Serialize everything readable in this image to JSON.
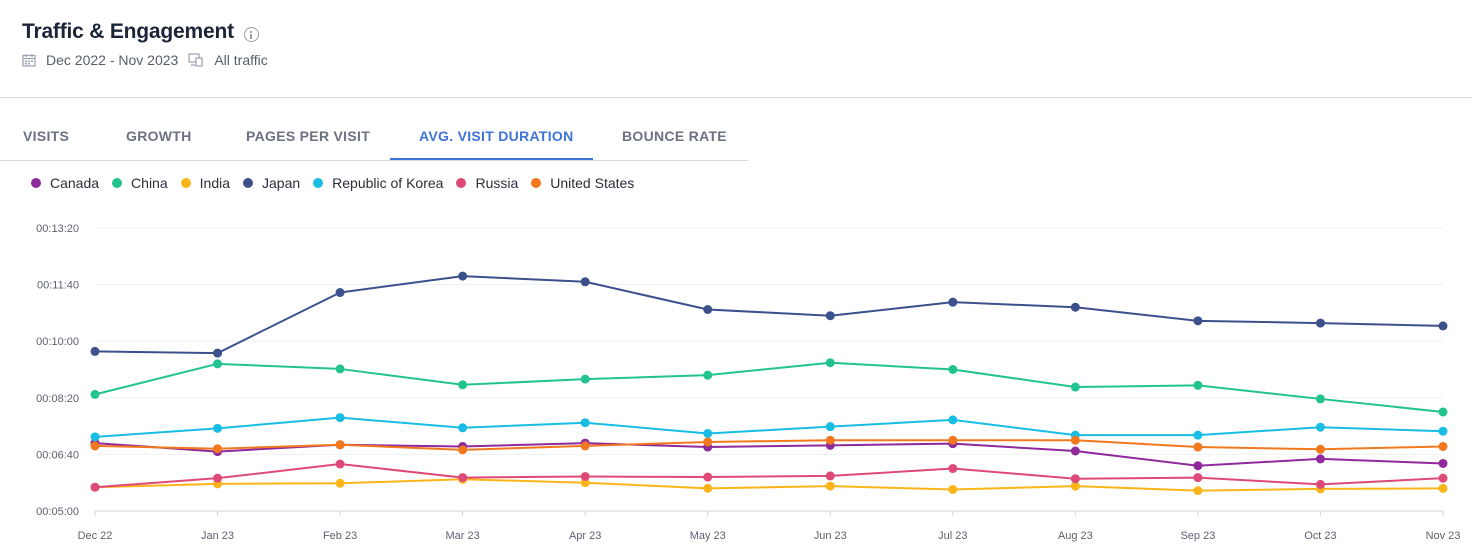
{
  "header": {
    "title": "Traffic & Engagement",
    "date_range": "Dec 2022 - Nov 2023",
    "traffic_type": "All traffic"
  },
  "tabs": [
    {
      "label": "VISITS"
    },
    {
      "label": "GROWTH"
    },
    {
      "label": "PAGES PER VISIT"
    },
    {
      "label": "AVG. VISIT DURATION",
      "active": true
    },
    {
      "label": "BOUNCE RATE"
    }
  ],
  "chart_data": {
    "type": "line",
    "x": [
      "Dec 22",
      "Jan 23",
      "Feb 23",
      "Mar 23",
      "Apr 23",
      "May 23",
      "Jun 23",
      "Jul 23",
      "Aug 23",
      "Sep 23",
      "Oct 23",
      "Nov 23"
    ],
    "y_unit": "seconds",
    "ylim": [
      300,
      800
    ],
    "y_ticks": [
      300,
      400,
      500,
      600,
      700,
      800
    ],
    "y_tick_labels": [
      "00:05:00",
      "00:06:40",
      "00:08:20",
      "00:10:00",
      "00:11:40",
      "00:13:20"
    ],
    "grid": true,
    "legend_position": "top-left",
    "series": [
      {
        "name": "Canada",
        "color": "#8e2a9c",
        "values": [
          420,
          405,
          417,
          414,
          420,
          413,
          416,
          419,
          406,
          380,
          392,
          384
        ]
      },
      {
        "name": "China",
        "color": "#22c38e",
        "values": [
          506,
          560,
          551,
          523,
          533,
          540,
          562,
          550,
          519,
          522,
          498,
          475
        ]
      },
      {
        "name": "India",
        "color": "#fbb51a",
        "values": [
          342,
          348,
          349,
          356,
          350,
          340,
          344,
          338,
          344,
          336,
          339,
          340
        ]
      },
      {
        "name": "Japan",
        "color": "#3c508c",
        "values": [
          582,
          579,
          686,
          715,
          705,
          656,
          645,
          669,
          660,
          636,
          632,
          627
        ]
      },
      {
        "name": "Republic of Korea",
        "color": "#19bde4",
        "values": [
          431,
          446,
          465,
          447,
          456,
          437,
          449,
          461,
          434,
          434,
          448,
          441
        ]
      },
      {
        "name": "Russia",
        "color": "#de4a78",
        "values": [
          342,
          358,
          383,
          359,
          361,
          360,
          362,
          375,
          357,
          359,
          347,
          358
        ]
      },
      {
        "name": "United States",
        "color": "#f2781e",
        "values": [
          415,
          410,
          417,
          408,
          415,
          422,
          425,
          425,
          425,
          413,
          409,
          414
        ]
      }
    ]
  }
}
